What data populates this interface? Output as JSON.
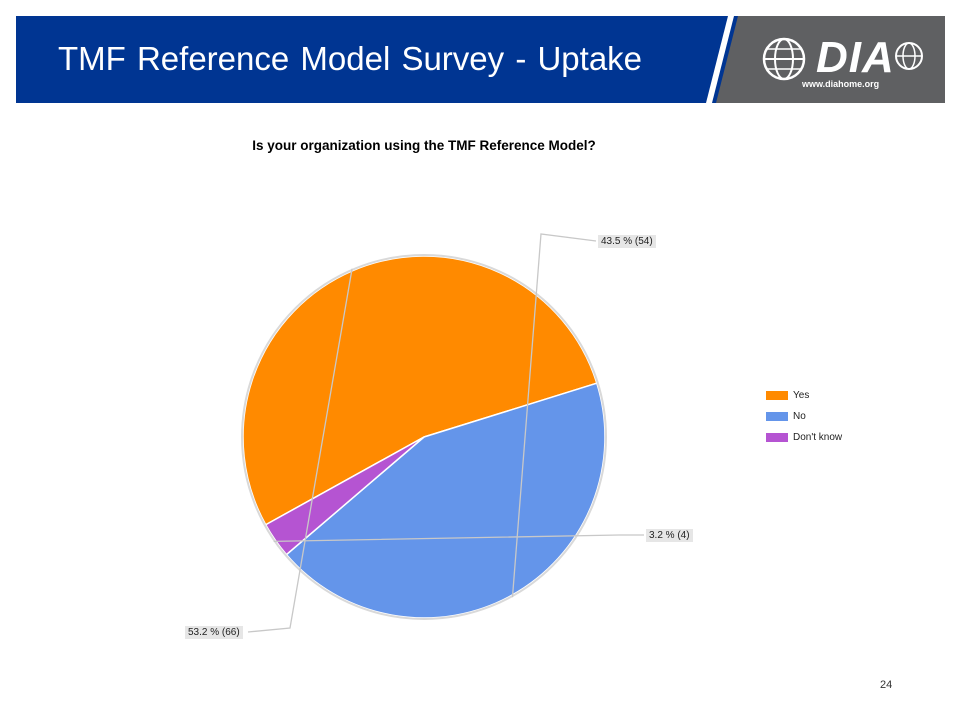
{
  "header": {
    "title": "TMF Reference Model Survey - Uptake",
    "logo_text": "DIA",
    "logo_url": "www.diahome.org"
  },
  "colors": {
    "header_blue": "#003592",
    "logo_gray": "#5f6062",
    "yes": "#ff8a00",
    "no": "#6495ea",
    "dont_know": "#b554d2"
  },
  "chart_data": {
    "type": "pie",
    "title": "Is your organization using the TMF Reference Model?",
    "slices": [
      {
        "label": "Yes",
        "value": 53.2,
        "count": 66,
        "display": "53.2 % (66)",
        "color": "#ff8a00"
      },
      {
        "label": "No",
        "value": 43.5,
        "count": 54,
        "display": "43.5 % (54)",
        "color": "#6495ea"
      },
      {
        "label": "Don't know",
        "value": 3.2,
        "count": 4,
        "display": "3.2 % (4)",
        "color": "#b554d2"
      }
    ],
    "legend_position": "right"
  },
  "page_number": "24"
}
